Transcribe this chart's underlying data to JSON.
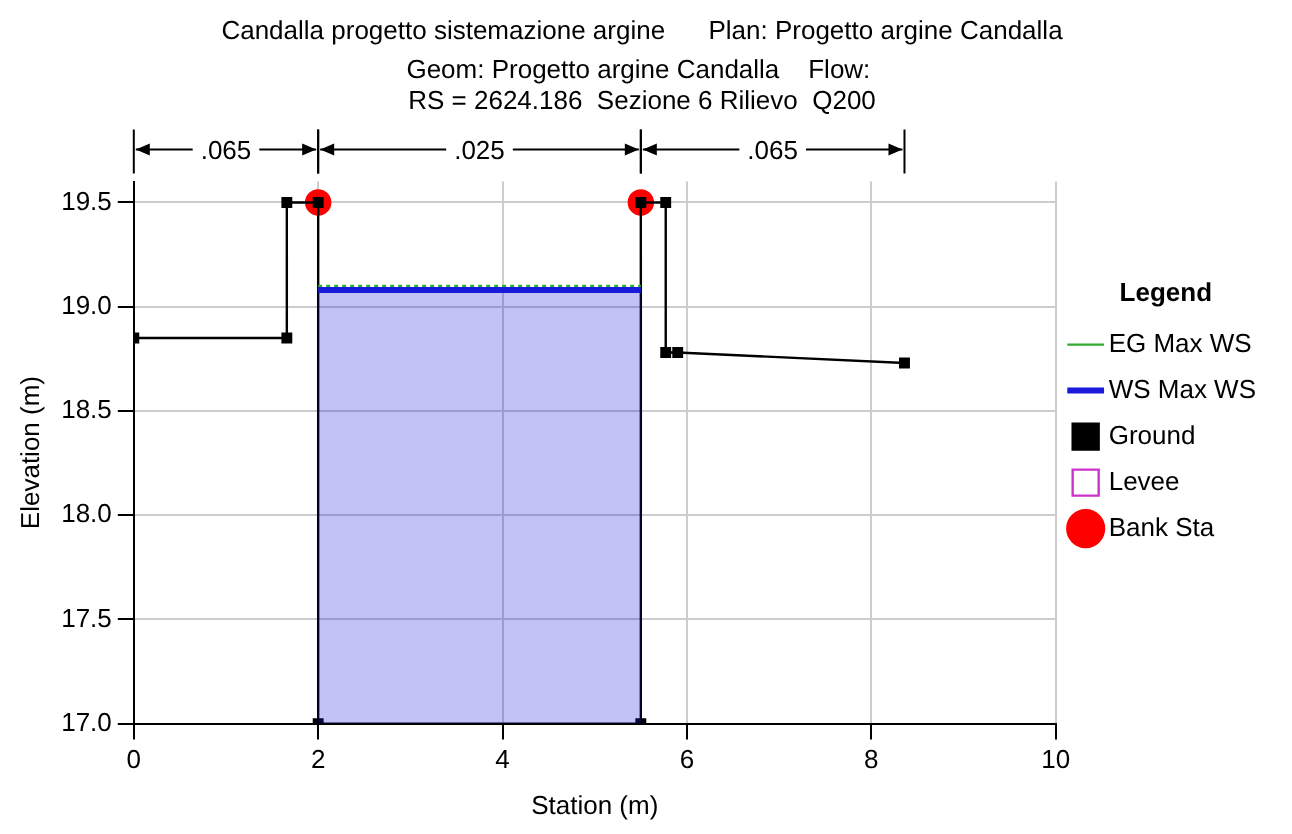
{
  "chart_data": {
    "type": "line",
    "title": "Candalla progetto sistemazione argine      Plan: Progetto argine Candalla",
    "subtitle": "Geom: Progetto argine Candalla    Flow: \nRS = 2624.186  Sezione 6 Rilievo  Q200",
    "xlabel": "Station (m)",
    "ylabel": "Elevation (m)",
    "legend_title": "Legend",
    "annotations": [
      ".065",
      ".025",
      ".065"
    ],
    "xlim": [
      0,
      10
    ],
    "xticks": [
      0,
      2,
      4,
      6,
      8,
      10
    ],
    "ylim": [
      17.0,
      19.6
    ],
    "yticks": [
      {
        "value": 17.0,
        "label": "17.0"
      },
      17.5,
      {
        "value": 18.0,
        "label": "18.0"
      },
      18.5,
      {
        "value": 19.0,
        "label": "19.0"
      },
      19.5
    ],
    "grid": true,
    "legend": "right",
    "series": [
      {
        "name": "EG Max WS",
        "color": "#33aa33",
        "line_style": "dotted",
        "marker": "none",
        "x": [
          2.0,
          5.5
        ],
        "values": [
          19.1,
          19.1
        ]
      },
      {
        "name": "WS Max WS",
        "type": "area",
        "color": "#1a1adc",
        "marker": "none",
        "x": [
          2.0,
          5.5
        ],
        "values": [
          19.08,
          19.08
        ]
      },
      {
        "name": "Ground",
        "color": "#000000",
        "marker": "square",
        "x": [
          0,
          1.66,
          1.66,
          2.0,
          2.0,
          5.5,
          5.5,
          5.77,
          5.77,
          5.9,
          8.36
        ],
        "values": [
          18.85,
          18.85,
          19.5,
          19.5,
          17.0,
          17.0,
          19.5,
          19.5,
          18.78,
          18.78,
          18.73
        ]
      },
      {
        "name": "Levee",
        "color": "#cc33cc",
        "marker": "square"
      },
      {
        "name": "Bank Sta",
        "type": "scatter",
        "color": "#ff0000",
        "marker": "circle",
        "x": [
          2.0,
          5.5
        ],
        "values": [
          19.5,
          19.5
        ]
      }
    ]
  }
}
